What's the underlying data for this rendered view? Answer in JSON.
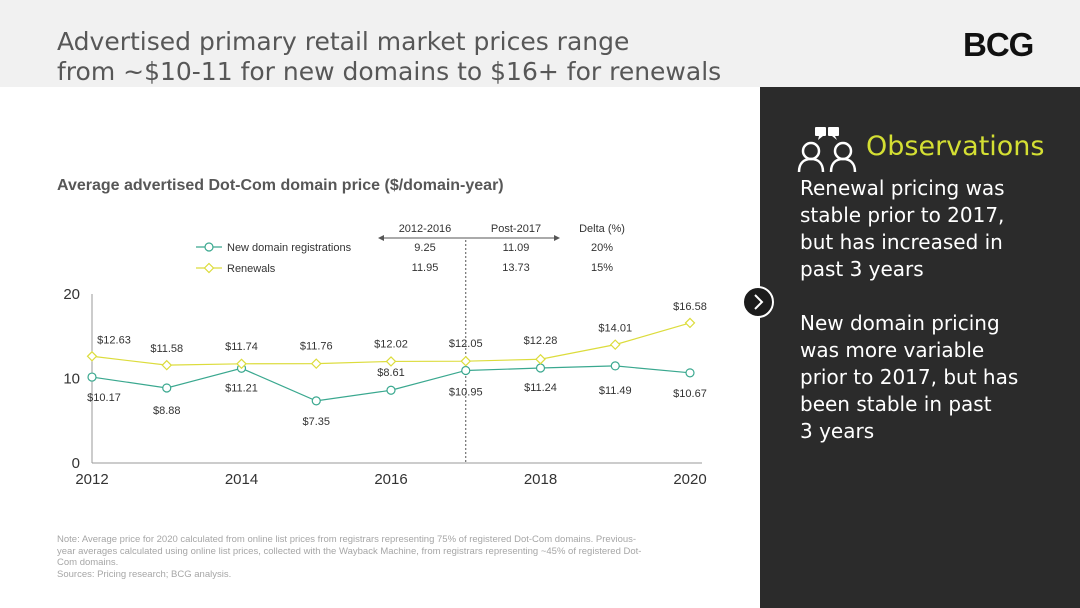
{
  "header": {
    "title_line1": "Advertised primary retail market prices range",
    "title_line2": "from ~$10-11 for new domains to $16+ for renewals",
    "logo": "BCG"
  },
  "observations": {
    "heading": "Observations",
    "para1": [
      "Renewal pricing was",
      "stable prior to 2017,",
      "but has increased in",
      "past 3 years"
    ],
    "para2": [
      "New domain pricing",
      "was more variable",
      "prior to 2017, but has",
      "been stable in past",
      "3 years"
    ]
  },
  "chart_title": "Average advertised Dot-Com domain price ($/domain-year)",
  "summary_table": {
    "headers": [
      "2012-2016",
      "Post-2017",
      "Delta (%)"
    ],
    "rows": [
      {
        "label": "New domain registrations",
        "values": [
          "9.25",
          "11.09",
          "20%"
        ]
      },
      {
        "label": "Renewals",
        "values": [
          "11.95",
          "13.73",
          "15%"
        ]
      }
    ]
  },
  "chart_data": {
    "type": "line",
    "x": [
      2012,
      2013,
      2014,
      2015,
      2016,
      2017,
      2018,
      2019,
      2020
    ],
    "x_ticks": [
      "2012",
      "2014",
      "2016",
      "2018",
      "2020"
    ],
    "y_ticks": [
      "0",
      "10",
      "20"
    ],
    "ylim": [
      0,
      20
    ],
    "xlim": [
      2012,
      2020
    ],
    "divider_x": 2017,
    "series": [
      {
        "name": "New domain registrations",
        "color": "#3aa88f",
        "marker": "circle",
        "values": [
          10.17,
          8.88,
          11.21,
          7.35,
          8.61,
          10.95,
          11.24,
          11.49,
          10.67
        ],
        "labels": [
          "$10.17",
          "$8.88",
          "$11.21",
          "$7.35",
          "$8.61",
          "$10.95",
          "$11.24",
          "$11.49",
          "$10.67"
        ]
      },
      {
        "name": "Renewals",
        "color": "#dcdc3c",
        "marker": "diamond",
        "values": [
          12.63,
          11.58,
          11.74,
          11.76,
          12.02,
          12.05,
          12.28,
          14.01,
          16.58
        ],
        "labels": [
          "$12.63",
          "$11.58",
          "$11.74",
          "$11.76",
          "$12.02",
          "$12.05",
          "$12.28",
          "$14.01",
          "$16.58"
        ]
      }
    ]
  },
  "note": [
    "Note: Average price for 2020 calculated from online list prices from registrars representing 75% of registered Dot-Com domains. Previous-",
    "year averages calculated using online list prices, collected with the Wayback Machine, from registrars representing ~45% of registered Dot-",
    "Com domains.",
    "Sources: Pricing research; BCG analysis."
  ]
}
